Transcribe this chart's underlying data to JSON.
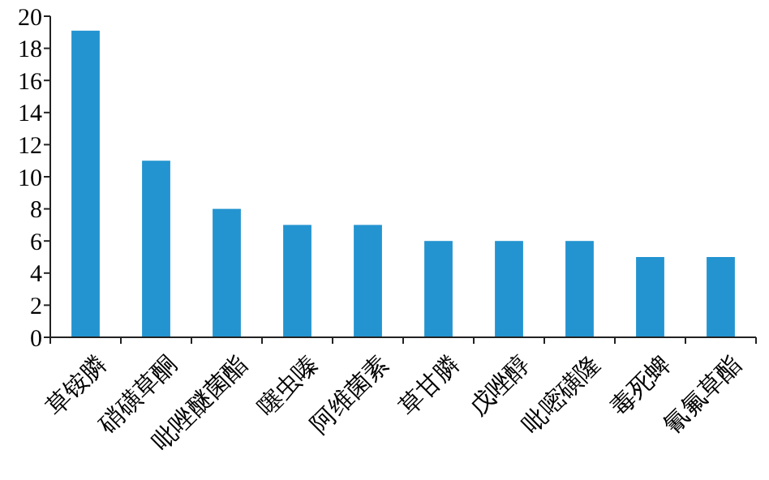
{
  "chart_data": {
    "type": "bar",
    "categories": [
      "草铵膦",
      "硝磺草酮",
      "吡唑醚菌酯",
      "噻虫嗪",
      "阿维菌素",
      "草甘膦",
      "戊唑醇",
      "吡嘧磺隆",
      "毒死蜱",
      "氰氟草酯"
    ],
    "values": [
      19.1,
      11,
      8,
      7,
      7,
      6,
      6,
      6,
      5,
      5
    ],
    "color": "#2394d0",
    "ylim": [
      0,
      20
    ],
    "yticks": [
      0,
      2,
      4,
      6,
      8,
      10,
      12,
      14,
      16,
      18,
      20
    ],
    "grid": false
  }
}
